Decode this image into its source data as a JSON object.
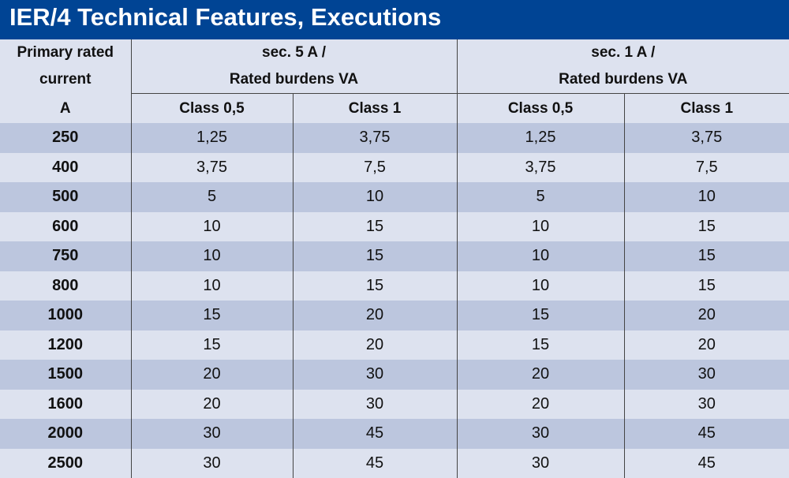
{
  "title": "IER/4 Technical Features, Executions",
  "header": {
    "primary_line1": "Primary rated",
    "primary_line2": "current",
    "primary_line3": "A",
    "group1_line1": "sec. 5 A /",
    "group1_line2": "Rated burdens VA",
    "group2_line1": "sec. 1 A /",
    "group2_line2": "Rated burdens VA",
    "class_a": "Class 0,5",
    "class_b": "Class 1"
  },
  "rows": [
    [
      "250",
      "1,25",
      "3,75",
      "1,25",
      "3,75"
    ],
    [
      "400",
      "3,75",
      "7,5",
      "3,75",
      "7,5"
    ],
    [
      "500",
      "5",
      "10",
      "5",
      "10"
    ],
    [
      "600",
      "10",
      "15",
      "10",
      "15"
    ],
    [
      "750",
      "10",
      "15",
      "10",
      "15"
    ],
    [
      "800",
      "10",
      "15",
      "10",
      "15"
    ],
    [
      "1000",
      "15",
      "20",
      "15",
      "20"
    ],
    [
      "1200",
      "15",
      "20",
      "15",
      "20"
    ],
    [
      "1500",
      "20",
      "30",
      "20",
      "30"
    ],
    [
      "1600",
      "20",
      "30",
      "20",
      "30"
    ],
    [
      "2000",
      "30",
      "45",
      "30",
      "45"
    ],
    [
      "2500",
      "30",
      "45",
      "30",
      "45"
    ]
  ],
  "colors": {
    "title_bg": "#004494",
    "row_band": "#bcc6de",
    "row_plain": "#dde2ef"
  }
}
